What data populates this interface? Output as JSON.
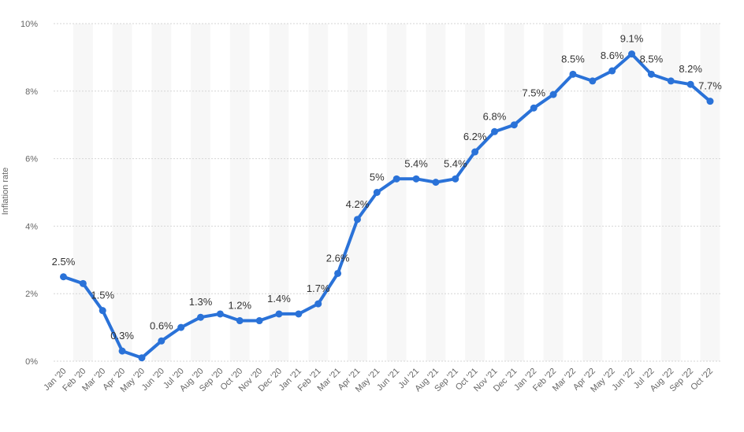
{
  "chart_data": {
    "type": "line",
    "title": "",
    "xlabel": "",
    "ylabel": "Inflation rate",
    "ylim": [
      0,
      10
    ],
    "y_ticks": [
      "0%",
      "2%",
      "4%",
      "6%",
      "8%",
      "10%"
    ],
    "grid": "horizontal dashed",
    "categories": [
      "Jan '20",
      "Feb '20",
      "Mar '20",
      "Apr '20",
      "May '20",
      "Jun '20",
      "Jul '20",
      "Aug '20",
      "Sep '20",
      "Oct '20",
      "Nov '20",
      "Dec '20",
      "Jan '21",
      "Feb '21",
      "Mar '21",
      "Apr '21",
      "May '21",
      "Jun '21",
      "Jul '21",
      "Aug '21",
      "Sep '21",
      "Oct '21",
      "Nov '21",
      "Dec '21",
      "Jan '22",
      "Feb '22",
      "Mar '22",
      "Apr '22",
      "May '22",
      "Jun '22",
      "Jul '22",
      "Aug '22",
      "Sep '22",
      "Oct '22"
    ],
    "series": [
      {
        "color": "#2a72d8",
        "values": [
          2.5,
          2.3,
          1.5,
          0.3,
          0.1,
          0.6,
          1.0,
          1.3,
          1.4,
          1.2,
          1.2,
          1.4,
          1.4,
          1.7,
          2.6,
          4.2,
          5.0,
          5.4,
          5.4,
          5.3,
          5.4,
          6.2,
          6.8,
          7.0,
          7.5,
          7.9,
          8.5,
          8.3,
          8.6,
          9.1,
          8.5,
          8.3,
          8.2,
          7.7
        ]
      }
    ],
    "data_labels": [
      {
        "index": 0,
        "text": "2.5%"
      },
      {
        "index": 2,
        "text": "1.5%"
      },
      {
        "index": 3,
        "text": "0.3%"
      },
      {
        "index": 5,
        "text": "0.6%"
      },
      {
        "index": 7,
        "text": "1.3%"
      },
      {
        "index": 9,
        "text": "1.2%"
      },
      {
        "index": 11,
        "text": "1.4%"
      },
      {
        "index": 13,
        "text": "1.7%"
      },
      {
        "index": 14,
        "text": "2.6%"
      },
      {
        "index": 15,
        "text": "4.2%"
      },
      {
        "index": 16,
        "text": "5%"
      },
      {
        "index": 18,
        "text": "5.4%"
      },
      {
        "index": 20,
        "text": "5.4%"
      },
      {
        "index": 21,
        "text": "6.2%"
      },
      {
        "index": 22,
        "text": "6.8%"
      },
      {
        "index": 24,
        "text": "7.5%"
      },
      {
        "index": 26,
        "text": "8.5%"
      },
      {
        "index": 28,
        "text": "8.6%"
      },
      {
        "index": 29,
        "text": "9.1%"
      },
      {
        "index": 30,
        "text": "8.5%"
      },
      {
        "index": 32,
        "text": "8.2%"
      },
      {
        "index": 33,
        "text": "7.7%"
      }
    ]
  }
}
